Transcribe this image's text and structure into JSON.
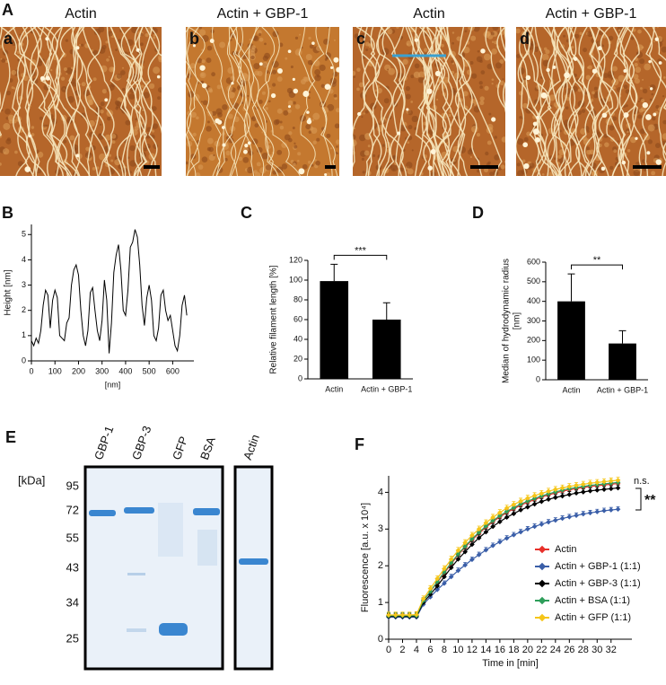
{
  "panel_a": {
    "label": "A",
    "images": [
      {
        "letter": "a",
        "title": "Actin"
      },
      {
        "letter": "b",
        "title": "Actin + GBP-1"
      },
      {
        "letter": "c",
        "title": "Actin"
      },
      {
        "letter": "d",
        "title": "Actin + GBP-1"
      }
    ]
  },
  "chart_data": [
    {
      "panel": "B",
      "type": "line",
      "xlabel": "[nm]",
      "ylabel": "Height [nm]",
      "color": "#000000",
      "x": [
        0,
        10,
        20,
        30,
        40,
        50,
        60,
        70,
        80,
        90,
        100,
        110,
        120,
        130,
        140,
        150,
        160,
        170,
        180,
        190,
        200,
        210,
        220,
        230,
        240,
        250,
        260,
        270,
        280,
        290,
        300,
        310,
        320,
        330,
        340,
        350,
        360,
        370,
        380,
        390,
        400,
        410,
        420,
        430,
        440,
        450,
        460,
        470,
        480,
        490,
        500,
        510,
        520,
        530,
        540,
        550,
        560,
        570,
        580,
        590,
        600,
        610,
        620,
        630,
        640,
        650,
        660
      ],
      "values": [
        0.8,
        0.6,
        0.9,
        0.7,
        1.2,
        2.2,
        2.8,
        2.6,
        1.3,
        2.4,
        2.8,
        2.5,
        1.0,
        0.9,
        0.8,
        1.5,
        1.7,
        3.0,
        3.6,
        3.8,
        3.4,
        2.0,
        1.0,
        0.6,
        1.2,
        2.7,
        2.9,
        2.0,
        1.2,
        0.8,
        1.6,
        3.2,
        2.4,
        0.3,
        1.5,
        3.5,
        4.2,
        4.6,
        3.6,
        2.0,
        1.8,
        2.8,
        4.5,
        4.7,
        5.2,
        4.9,
        3.8,
        2.2,
        1.4,
        2.5,
        3.0,
        2.4,
        1.0,
        0.8,
        1.3,
        2.6,
        2.8,
        2.0,
        1.6,
        1.8,
        1.2,
        0.6,
        0.4,
        1.0,
        2.2,
        2.6,
        1.8
      ],
      "xlim": [
        0,
        690
      ],
      "xticks": [
        0,
        100,
        200,
        300,
        400,
        500,
        600
      ],
      "ylim": [
        0,
        5.4
      ],
      "yticks": [
        0,
        1,
        2,
        3,
        4,
        5
      ]
    },
    {
      "panel": "C",
      "type": "bar",
      "ylabel": [
        "Relative filament length [%]"
      ],
      "color": "#000000",
      "categories": [
        "Actin",
        "Actin + GBP-1"
      ],
      "values": [
        99,
        60
      ],
      "errors": [
        17,
        17
      ],
      "ylim": [
        0,
        120
      ],
      "yticks": [
        0,
        20,
        40,
        60,
        80,
        100,
        120
      ],
      "annotation": "***"
    },
    {
      "panel": "D",
      "type": "bar",
      "ylabel": [
        "Median of hydrodynamic radius",
        "[nm]"
      ],
      "color": "#000000",
      "categories": [
        "Actin",
        "Actin + GBP-1"
      ],
      "values": [
        400,
        185
      ],
      "errors": [
        140,
        65
      ],
      "ylim": [
        0,
        600
      ],
      "yticks": [
        0,
        100,
        200,
        300,
        400,
        500,
        600
      ],
      "annotation": "**"
    },
    {
      "panel": "F",
      "type": "line",
      "xlabel": "Time in [min]",
      "ylabel": "Fluorescence [a.u. x 10⁴]",
      "x": [
        0,
        1,
        2,
        3,
        4,
        5,
        6,
        7,
        8,
        9,
        10,
        11,
        12,
        13,
        14,
        15,
        16,
        17,
        18,
        19,
        20,
        21,
        22,
        23,
        24,
        25,
        26,
        27,
        28,
        29,
        30,
        31,
        32,
        33
      ],
      "series": [
        {
          "name": "Actin",
          "color": "#e8302a",
          "error": 0.08,
          "values": [
            0.65,
            0.65,
            0.65,
            0.65,
            0.66,
            1.05,
            1.3,
            1.55,
            1.8,
            2.05,
            2.3,
            2.5,
            2.7,
            2.88,
            3.05,
            3.2,
            3.33,
            3.45,
            3.55,
            3.65,
            3.73,
            3.8,
            3.87,
            3.93,
            3.98,
            4.03,
            4.07,
            4.1,
            4.13,
            4.16,
            4.18,
            4.2,
            4.22,
            4.24
          ]
        },
        {
          "name": "Actin + GBP-1 (1:1)",
          "color": "#3a5ea8",
          "error": 0.07,
          "values": [
            0.6,
            0.6,
            0.6,
            0.6,
            0.6,
            0.95,
            1.15,
            1.35,
            1.52,
            1.7,
            1.87,
            2.02,
            2.17,
            2.3,
            2.43,
            2.55,
            2.65,
            2.75,
            2.84,
            2.92,
            3.0,
            3.07,
            3.13,
            3.19,
            3.24,
            3.29,
            3.33,
            3.37,
            3.41,
            3.44,
            3.47,
            3.5,
            3.52,
            3.54
          ]
        },
        {
          "name": "Actin + GBP-3 (1:1)",
          "color": "#000000",
          "error": 0.08,
          "values": [
            0.62,
            0.62,
            0.62,
            0.62,
            0.62,
            1.0,
            1.22,
            1.45,
            1.7,
            1.95,
            2.18,
            2.38,
            2.58,
            2.76,
            2.92,
            3.07,
            3.2,
            3.32,
            3.42,
            3.52,
            3.6,
            3.68,
            3.75,
            3.81,
            3.86,
            3.9,
            3.94,
            3.98,
            4.01,
            4.04,
            4.06,
            4.08,
            4.1,
            4.12
          ]
        },
        {
          "name": "Actin + BSA (1:1)",
          "color": "#2e9e5a",
          "error": 0.08,
          "values": [
            0.64,
            0.64,
            0.64,
            0.64,
            0.64,
            1.05,
            1.3,
            1.57,
            1.83,
            2.08,
            2.32,
            2.53,
            2.73,
            2.91,
            3.08,
            3.23,
            3.36,
            3.48,
            3.58,
            3.68,
            3.76,
            3.83,
            3.9,
            3.96,
            4.01,
            4.06,
            4.1,
            4.13,
            4.16,
            4.19,
            4.21,
            4.23,
            4.25,
            4.27
          ]
        },
        {
          "name": "Actin + GFP (1:1)",
          "color": "#f5c518",
          "error": 0.08,
          "values": [
            0.66,
            0.66,
            0.66,
            0.66,
            0.67,
            1.1,
            1.38,
            1.65,
            1.92,
            2.18,
            2.42,
            2.63,
            2.83,
            3.0,
            3.17,
            3.32,
            3.45,
            3.57,
            3.67,
            3.76,
            3.84,
            3.91,
            3.97,
            4.03,
            4.08,
            4.12,
            4.16,
            4.19,
            4.22,
            4.25,
            4.27,
            4.29,
            4.31,
            4.33
          ]
        }
      ],
      "xlim": [
        0,
        35
      ],
      "xticks": [
        0,
        2,
        4,
        6,
        8,
        10,
        12,
        14,
        16,
        18,
        20,
        22,
        24,
        26,
        28,
        30,
        32
      ],
      "ylim": [
        0,
        4.45
      ],
      "yticks": [
        0,
        1,
        2,
        3,
        4
      ],
      "legend": "lower right",
      "annotations": [
        "n.s.",
        "**"
      ]
    }
  ],
  "panel_e": {
    "label": "E",
    "unit": "[kDa]",
    "markers": [
      "95",
      "72",
      "55",
      "43",
      "34",
      "25"
    ],
    "lanes": [
      "GBP-1",
      "GBP-3",
      "GFP",
      "BSA",
      "Actin"
    ]
  }
}
